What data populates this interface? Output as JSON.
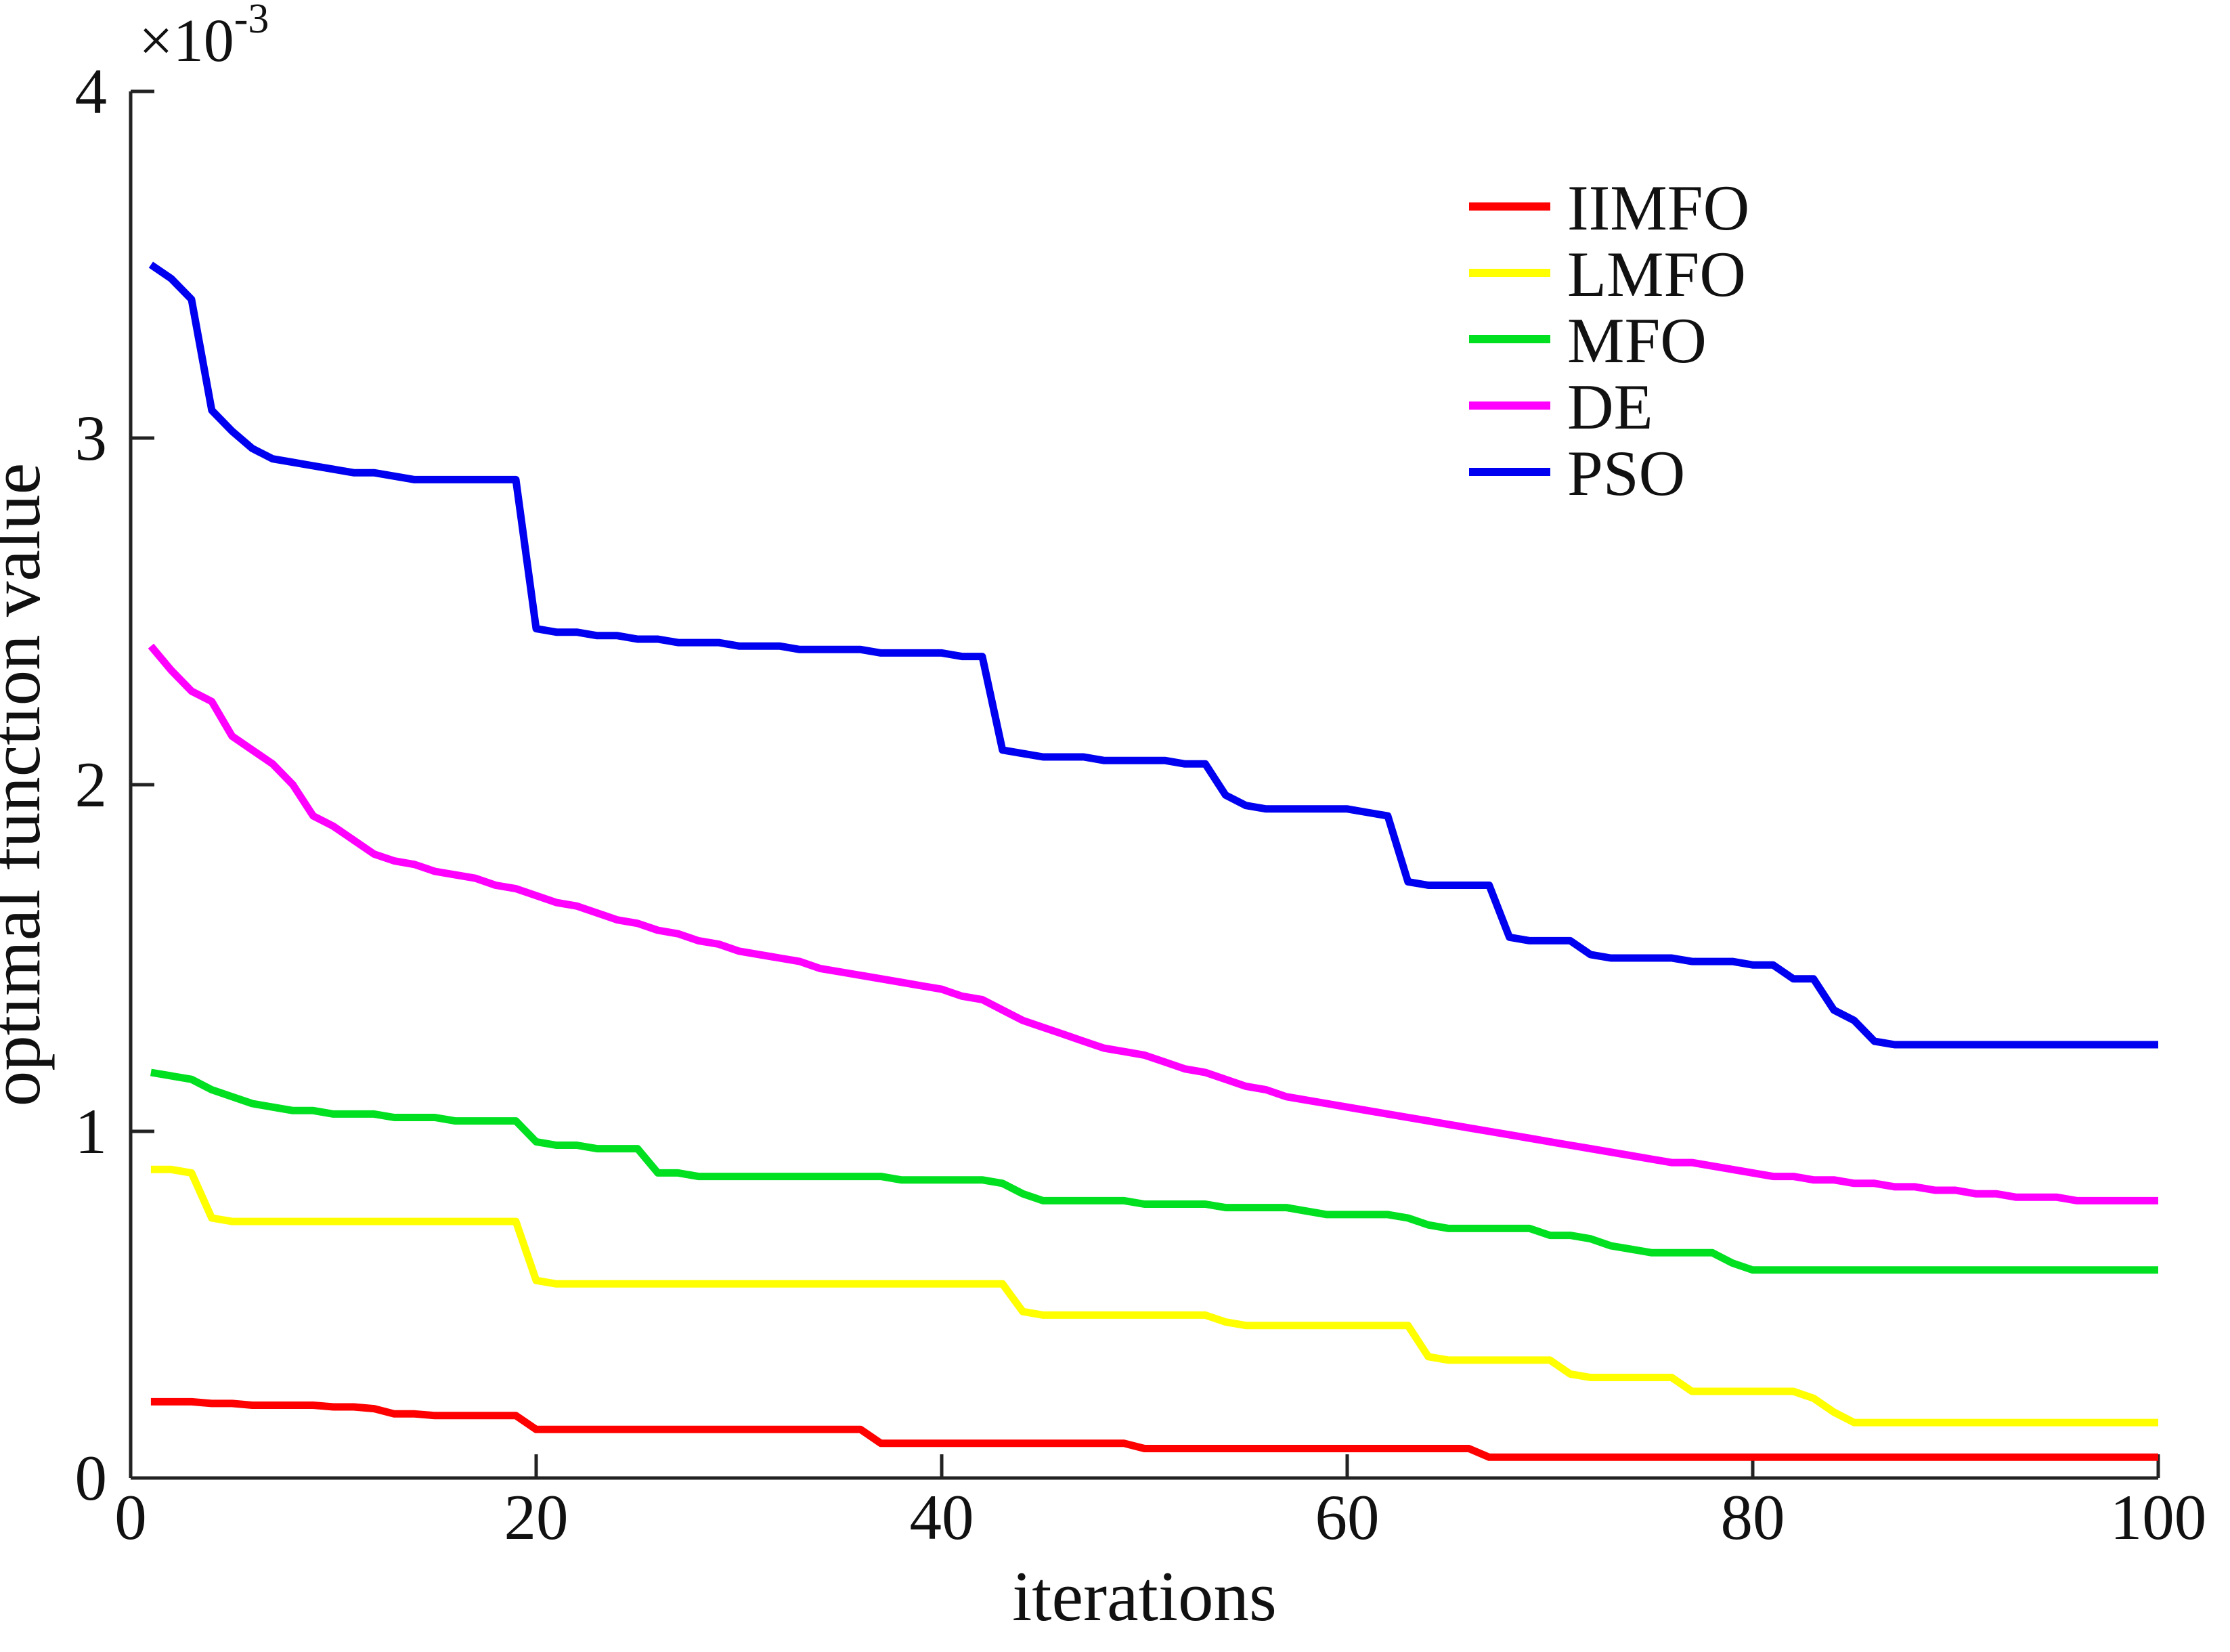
{
  "figure": {
    "background": "#ffffff",
    "axis_color": "#222222"
  },
  "chart_data": {
    "type": "line",
    "title": "",
    "xlabel": "iterations",
    "ylabel": "optimal function value",
    "y_multiplier": {
      "base": "×10",
      "exp": "-3",
      "display": "×10⁻³"
    },
    "values_scale": "1e-3",
    "xlim": [
      0,
      100
    ],
    "ylim_display": [
      0,
      4
    ],
    "x_ticks": [
      "0",
      "20",
      "40",
      "60",
      "80",
      "100"
    ],
    "x_tick_values": [
      0,
      20,
      40,
      60,
      80,
      100
    ],
    "y_ticks": [
      "0",
      "1",
      "2",
      "3",
      "4"
    ],
    "y_tick_values": [
      0,
      1,
      2,
      3,
      4
    ],
    "grid": false,
    "legend_position": "upper-right-inside",
    "x_start": 1,
    "x_end": 100,
    "series": [
      {
        "name": "IIMFO",
        "color": "#ff0000",
        "values": [
          0.22,
          0.22,
          0.22,
          0.215,
          0.215,
          0.21,
          0.21,
          0.21,
          0.21,
          0.205,
          0.205,
          0.2,
          0.185,
          0.185,
          0.18,
          0.18,
          0.18,
          0.18,
          0.18,
          0.14,
          0.14,
          0.14,
          0.14,
          0.14,
          0.14,
          0.14,
          0.14,
          0.14,
          0.14,
          0.14,
          0.14,
          0.14,
          0.14,
          0.14,
          0.14,
          0.14,
          0.1,
          0.1,
          0.1,
          0.1,
          0.1,
          0.1,
          0.1,
          0.1,
          0.1,
          0.1,
          0.1,
          0.1,
          0.1,
          0.085,
          0.085,
          0.085,
          0.085,
          0.085,
          0.085,
          0.085,
          0.085,
          0.085,
          0.085,
          0.085,
          0.085,
          0.085,
          0.085,
          0.085,
          0.085,
          0.085,
          0.06,
          0.06,
          0.06,
          0.06,
          0.06,
          0.06,
          0.06,
          0.06,
          0.06,
          0.06,
          0.06,
          0.06,
          0.06,
          0.06,
          0.06,
          0.06,
          0.06,
          0.06,
          0.06,
          0.06,
          0.06,
          0.06,
          0.06,
          0.06,
          0.06,
          0.06,
          0.06,
          0.06,
          0.06,
          0.06,
          0.06,
          0.06,
          0.06,
          0.06
        ]
      },
      {
        "name": "LMFO",
        "color": "#ffff00",
        "values": [
          0.89,
          0.89,
          0.88,
          0.75,
          0.74,
          0.74,
          0.74,
          0.74,
          0.74,
          0.74,
          0.74,
          0.74,
          0.74,
          0.74,
          0.74,
          0.74,
          0.74,
          0.74,
          0.74,
          0.57,
          0.56,
          0.56,
          0.56,
          0.56,
          0.56,
          0.56,
          0.56,
          0.56,
          0.56,
          0.56,
          0.56,
          0.56,
          0.56,
          0.56,
          0.56,
          0.56,
          0.56,
          0.56,
          0.56,
          0.56,
          0.56,
          0.56,
          0.56,
          0.48,
          0.47,
          0.47,
          0.47,
          0.47,
          0.47,
          0.47,
          0.47,
          0.47,
          0.47,
          0.45,
          0.44,
          0.44,
          0.44,
          0.44,
          0.44,
          0.44,
          0.44,
          0.44,
          0.44,
          0.35,
          0.34,
          0.34,
          0.34,
          0.34,
          0.34,
          0.34,
          0.3,
          0.29,
          0.29,
          0.29,
          0.29,
          0.29,
          0.25,
          0.25,
          0.25,
          0.25,
          0.25,
          0.25,
          0.23,
          0.19,
          0.16,
          0.16,
          0.16,
          0.16,
          0.16,
          0.16,
          0.16,
          0.16,
          0.16,
          0.16,
          0.16,
          0.16,
          0.16,
          0.16,
          0.16,
          0.16
        ]
      },
      {
        "name": "MFO",
        "color": "#00e020",
        "values": [
          1.17,
          1.16,
          1.15,
          1.12,
          1.1,
          1.08,
          1.07,
          1.06,
          1.06,
          1.05,
          1.05,
          1.05,
          1.04,
          1.04,
          1.04,
          1.03,
          1.03,
          1.03,
          1.03,
          0.97,
          0.96,
          0.96,
          0.95,
          0.95,
          0.95,
          0.88,
          0.88,
          0.87,
          0.87,
          0.87,
          0.87,
          0.87,
          0.87,
          0.87,
          0.87,
          0.87,
          0.87,
          0.86,
          0.86,
          0.86,
          0.86,
          0.86,
          0.85,
          0.82,
          0.8,
          0.8,
          0.8,
          0.8,
          0.8,
          0.79,
          0.79,
          0.79,
          0.79,
          0.78,
          0.78,
          0.78,
          0.78,
          0.77,
          0.76,
          0.76,
          0.76,
          0.76,
          0.75,
          0.73,
          0.72,
          0.72,
          0.72,
          0.72,
          0.72,
          0.7,
          0.7,
          0.69,
          0.67,
          0.66,
          0.65,
          0.65,
          0.65,
          0.65,
          0.62,
          0.6,
          0.6,
          0.6,
          0.6,
          0.6,
          0.6,
          0.6,
          0.6,
          0.6,
          0.6,
          0.6,
          0.6,
          0.6,
          0.6,
          0.6,
          0.6,
          0.6,
          0.6,
          0.6,
          0.6,
          0.6
        ]
      },
      {
        "name": "DE",
        "color": "#ff00ff",
        "values": [
          2.4,
          2.33,
          2.27,
          2.24,
          2.14,
          2.1,
          2.06,
          2.0,
          1.91,
          1.88,
          1.84,
          1.8,
          1.78,
          1.77,
          1.75,
          1.74,
          1.73,
          1.71,
          1.7,
          1.68,
          1.66,
          1.65,
          1.63,
          1.61,
          1.6,
          1.58,
          1.57,
          1.55,
          1.54,
          1.52,
          1.51,
          1.5,
          1.49,
          1.47,
          1.46,
          1.45,
          1.44,
          1.43,
          1.42,
          1.41,
          1.39,
          1.38,
          1.35,
          1.32,
          1.3,
          1.28,
          1.26,
          1.24,
          1.23,
          1.22,
          1.2,
          1.18,
          1.17,
          1.15,
          1.13,
          1.12,
          1.1,
          1.09,
          1.08,
          1.07,
          1.06,
          1.05,
          1.04,
          1.03,
          1.02,
          1.01,
          1.0,
          0.99,
          0.98,
          0.97,
          0.96,
          0.95,
          0.94,
          0.93,
          0.92,
          0.91,
          0.91,
          0.9,
          0.89,
          0.88,
          0.87,
          0.87,
          0.86,
          0.86,
          0.85,
          0.85,
          0.84,
          0.84,
          0.83,
          0.83,
          0.82,
          0.82,
          0.81,
          0.81,
          0.81,
          0.8,
          0.8,
          0.8,
          0.8,
          0.8
        ]
      },
      {
        "name": "PSO",
        "color": "#0000f0",
        "values": [
          3.5,
          3.46,
          3.4,
          3.08,
          3.02,
          2.97,
          2.94,
          2.93,
          2.92,
          2.91,
          2.9,
          2.9,
          2.89,
          2.88,
          2.88,
          2.88,
          2.88,
          2.88,
          2.88,
          2.45,
          2.44,
          2.44,
          2.43,
          2.43,
          2.42,
          2.42,
          2.41,
          2.41,
          2.41,
          2.4,
          2.4,
          2.4,
          2.39,
          2.39,
          2.39,
          2.39,
          2.38,
          2.38,
          2.38,
          2.38,
          2.37,
          2.37,
          2.1,
          2.09,
          2.08,
          2.08,
          2.08,
          2.07,
          2.07,
          2.07,
          2.07,
          2.06,
          2.06,
          1.97,
          1.94,
          1.93,
          1.93,
          1.93,
          1.93,
          1.93,
          1.92,
          1.91,
          1.72,
          1.71,
          1.71,
          1.71,
          1.71,
          1.56,
          1.55,
          1.55,
          1.55,
          1.51,
          1.5,
          1.5,
          1.5,
          1.5,
          1.49,
          1.49,
          1.49,
          1.48,
          1.48,
          1.44,
          1.44,
          1.35,
          1.32,
          1.26,
          1.25,
          1.25,
          1.25,
          1.25,
          1.25,
          1.25,
          1.25,
          1.25,
          1.25,
          1.25,
          1.25,
          1.25,
          1.25,
          1.25
        ]
      }
    ]
  }
}
